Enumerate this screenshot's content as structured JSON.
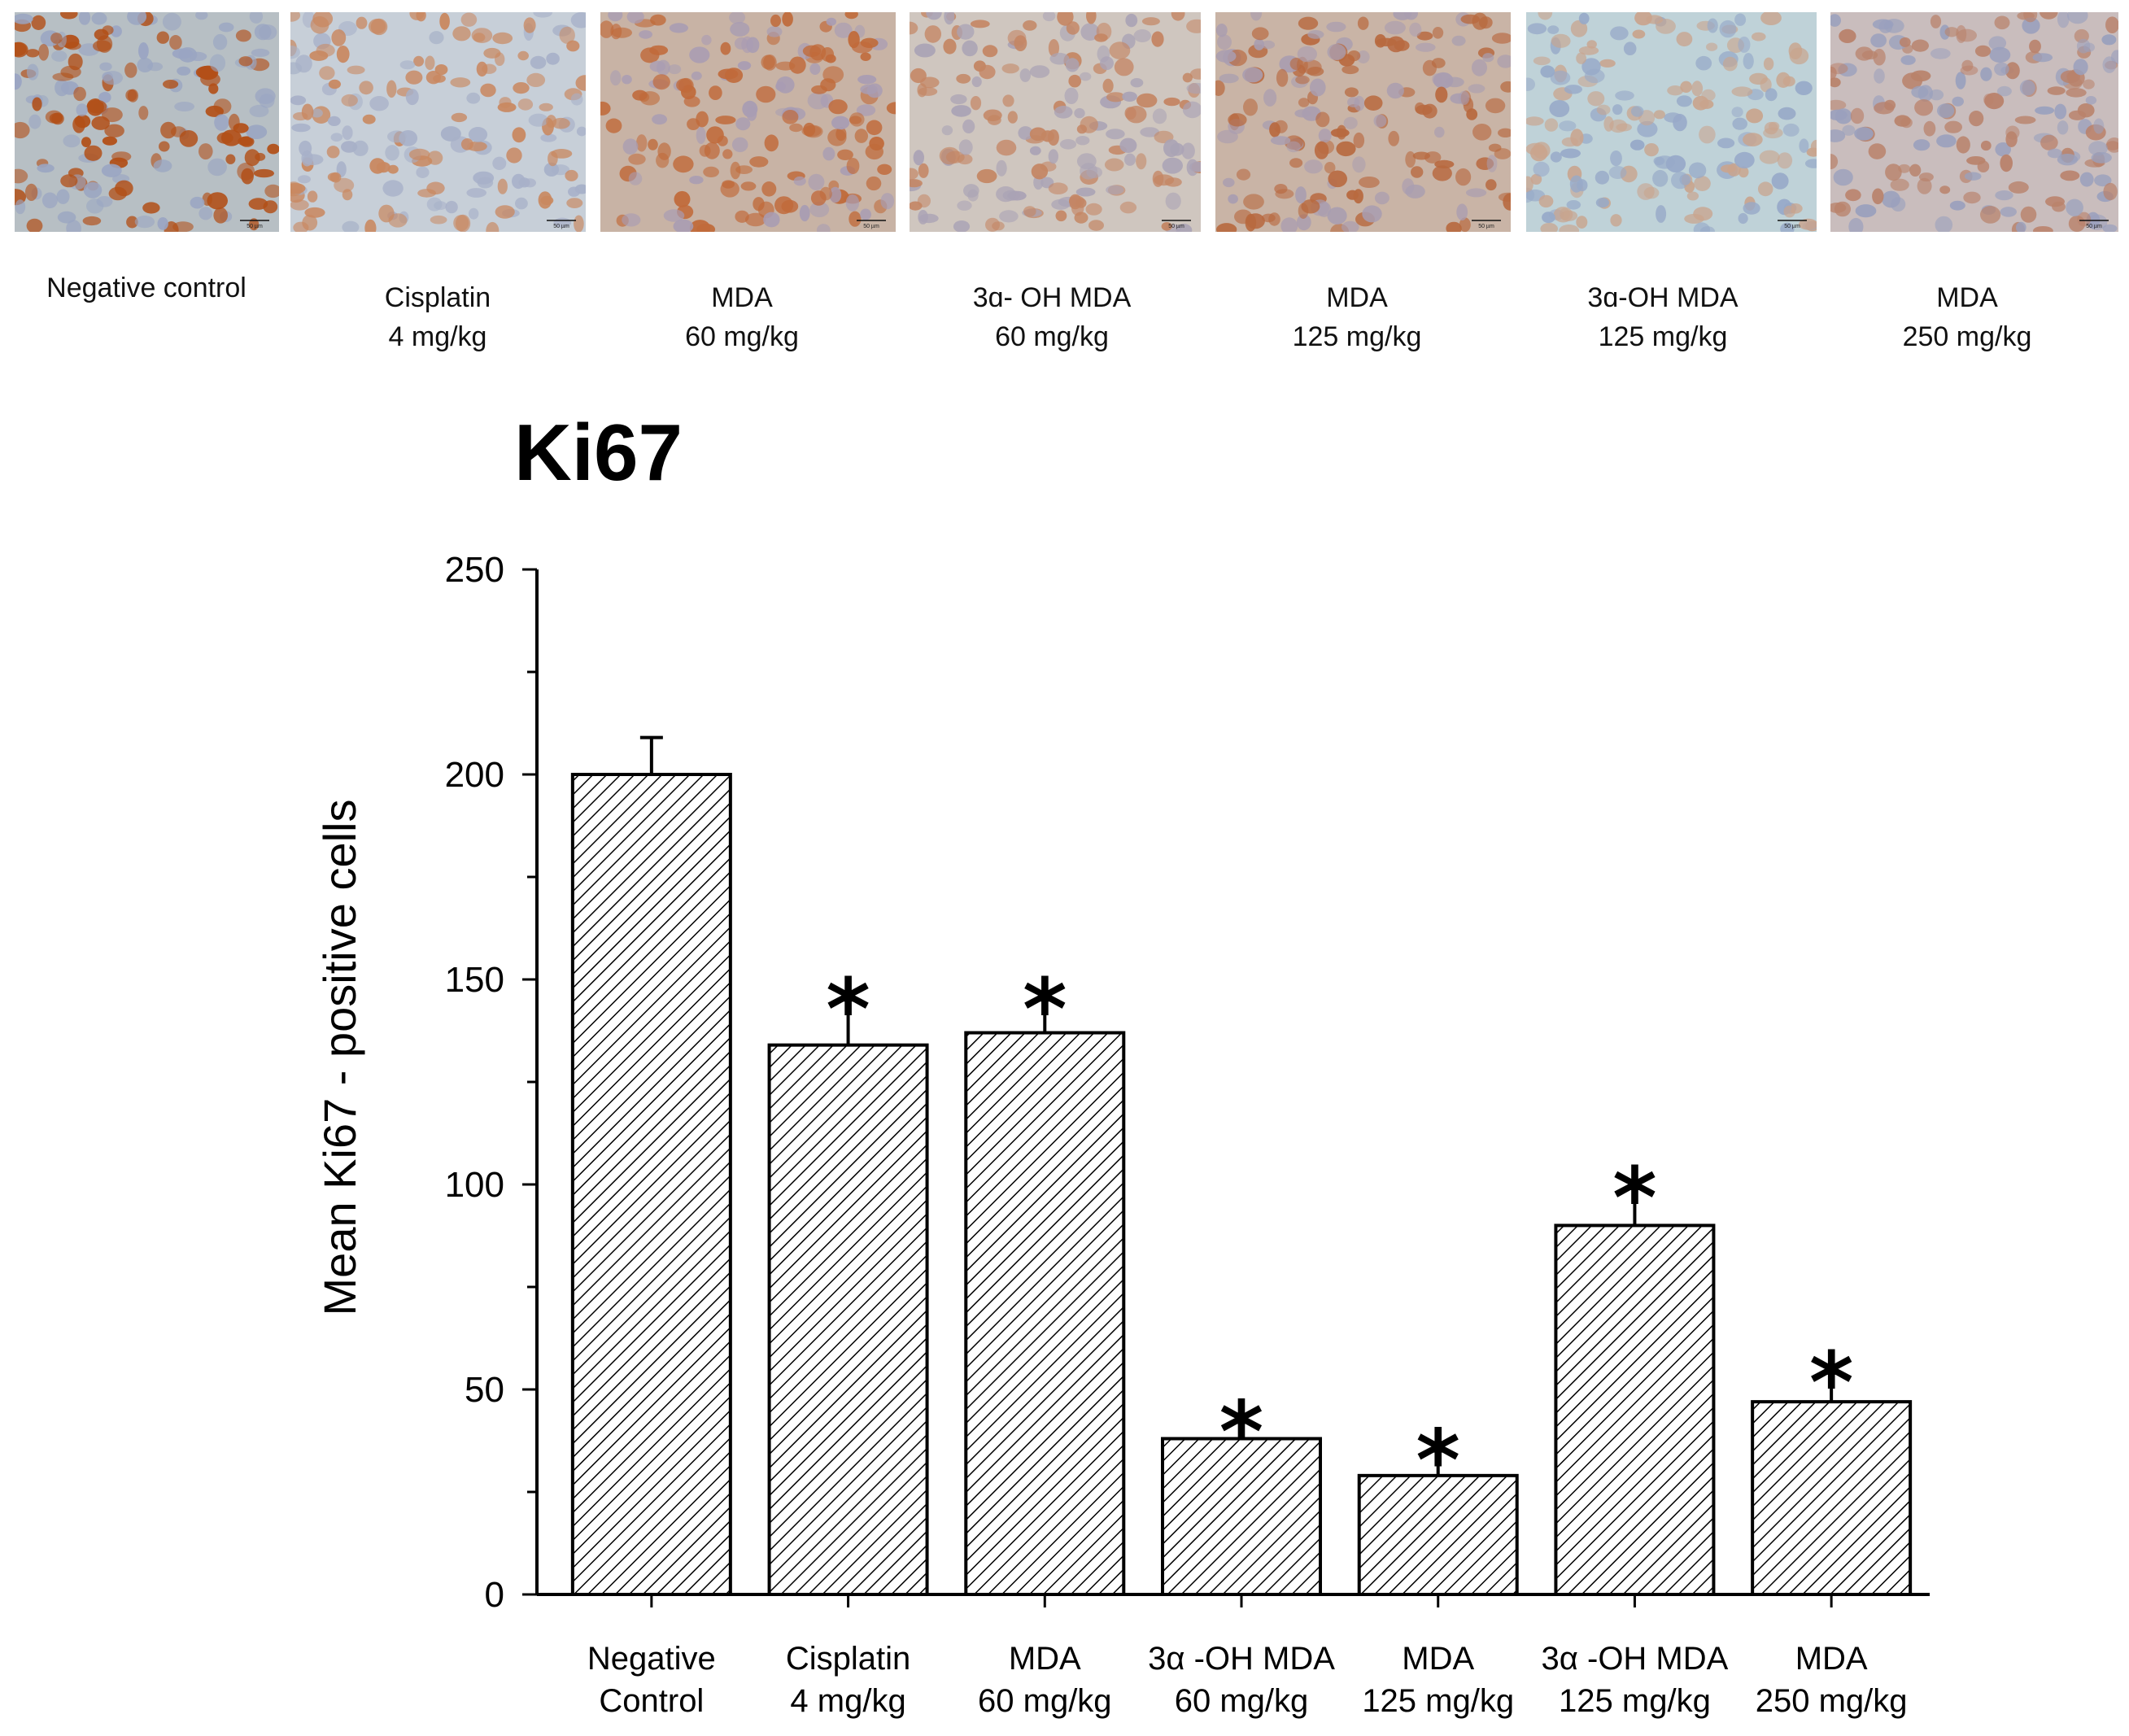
{
  "micrographs": {
    "scale_bar_label": "50 µm",
    "panels": [
      {
        "caption_lines": [
          "Negative control"
        ],
        "stain_color": "#b24f17",
        "background_color": "#b7bfc4",
        "nucleus_color": "#9aa5c2"
      },
      {
        "caption_lines": [
          "Cisplatin",
          "4 mg/kg"
        ],
        "stain_color": "#c98860",
        "background_color": "#c7cfd8",
        "nucleus_color": "#a7b0c8"
      },
      {
        "caption_lines": [
          "MDA",
          "60 mg/kg"
        ],
        "stain_color": "#c06a3a",
        "background_color": "#c8b3a5",
        "nucleus_color": "#a89cb3"
      },
      {
        "caption_lines": [
          "3ɑ- OH MDA",
          "60 mg/kg"
        ],
        "stain_color": "#c48563",
        "background_color": "#cfc6bf",
        "nucleus_color": "#aaa3b5"
      },
      {
        "caption_lines": [
          "MDA",
          "125 mg/kg"
        ],
        "stain_color": "#b8693f",
        "background_color": "#c9b4a6",
        "nucleus_color": "#a99db0"
      },
      {
        "caption_lines": [
          "3ɑ-OH MDA",
          "125 mg/kg"
        ],
        "stain_color": "#c9a48d",
        "background_color": "#bfd2d8",
        "nucleus_color": "#97a9c8"
      },
      {
        "caption_lines": [
          "MDA",
          "250 mg/kg"
        ],
        "stain_color": "#b9826b",
        "background_color": "#c9bdbd",
        "nucleus_color": "#9aa0bd"
      }
    ]
  },
  "chart_data": {
    "type": "bar",
    "title": "Ki67",
    "ylabel": "Mean Ki67 - positive cells",
    "xlabel": "",
    "ylim": [
      0,
      250
    ],
    "yticks": [
      0,
      50,
      100,
      150,
      200,
      250
    ],
    "categories": [
      [
        "Negative",
        "Control"
      ],
      [
        "Cisplatin",
        "4 mg/kg"
      ],
      [
        "MDA",
        "60 mg/kg"
      ],
      [
        "3α -OH MDA",
        "60 mg/kg"
      ],
      [
        "MDA",
        "125 mg/kg"
      ],
      [
        "3α -OH MDA",
        "125 mg/kg"
      ],
      [
        "MDA",
        "250 mg/kg"
      ]
    ],
    "values": [
      200,
      134,
      137,
      38,
      29,
      90,
      47
    ],
    "errors": [
      9,
      11,
      8,
      4,
      6,
      9,
      7
    ],
    "significant": [
      false,
      true,
      true,
      true,
      true,
      true,
      true
    ],
    "significance_marker": "*",
    "bar_fill": "hatched",
    "grid": false
  }
}
